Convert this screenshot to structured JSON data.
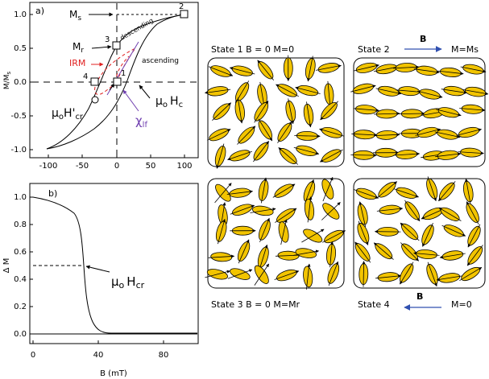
{
  "panel_a": {
    "label": "a)",
    "y_axis_label": "M/M",
    "y_axis_label_sub": "s",
    "y_ticks": [
      "1.0",
      "0.5",
      "0.0",
      "-0.5",
      "-1.0"
    ],
    "x_ticks": [
      "-100",
      "-50",
      "0",
      "50",
      "100"
    ],
    "annotations": {
      "ms": "M",
      "ms_sub": "s",
      "mr": "M",
      "mr_sub": "r",
      "irm": "IRM",
      "descending": "descending",
      "ascending": "ascending",
      "hcr_prime": "μ",
      "hcr_prime_sub": "o",
      "hcr_prime_main": "H'",
      "hcr_prime_sub2": "cr",
      "hc": "μ",
      "hc_sub": "o",
      "hc_main": "H",
      "hc_sub2": "c",
      "chi": "χ",
      "chi_sub": "lf",
      "n1": "1",
      "n2": "2",
      "n3": "3",
      "n4": "4"
    },
    "colors": {
      "irm": "#e02020",
      "chi": "#7040b0"
    }
  },
  "panel_b": {
    "label": "b)",
    "y_axis_label": "Δ M",
    "x_axis_label": "B (mT)",
    "y_ticks": [
      "1.0",
      "0.8",
      "0.6",
      "0.4",
      "0.2",
      "0.0"
    ],
    "x_ticks": [
      "0",
      "40",
      "80"
    ],
    "hcr_label": "μ",
    "hcr_label_sub": "o",
    "hcr_label_main": "H",
    "hcr_label_sub2": "cr"
  },
  "states": {
    "s1": "State 1  B = 0   M=0",
    "s2": "State 2",
    "s2_m": "M=Ms",
    "s2_b": "B",
    "s3": "State 3  B = 0    M=Mr",
    "s4": "State 4",
    "s4_m": "M=0",
    "s4_b": "B",
    "grain_color": "#f2c400",
    "arrow_color": "#3050b0"
  }
}
